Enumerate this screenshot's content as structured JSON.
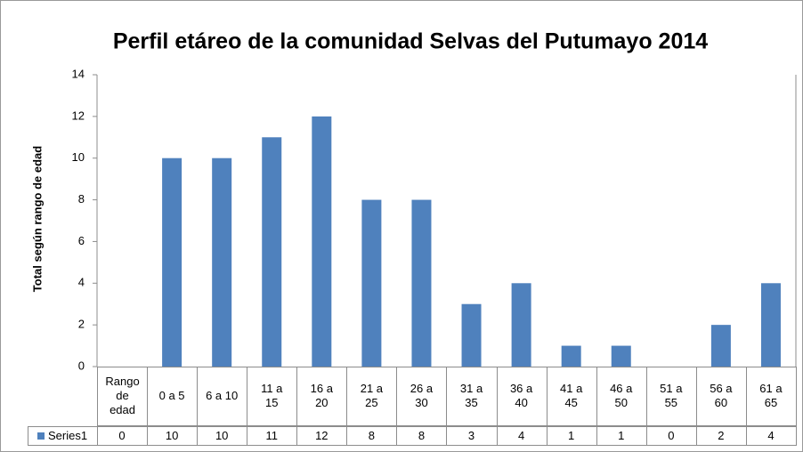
{
  "chart_data": {
    "type": "bar",
    "title": "Perfil etáreo de la comunidad Selvas del Putumayo 2014",
    "y_label": "Total según rango de edad",
    "categories": [
      "Rango de edad",
      "0 a 5",
      "6 a 10",
      "11 a 15",
      "16 a 20",
      "21 a 25",
      "26 a 30",
      "31 a 35",
      "36 a 40",
      "41 a 45",
      "46 a 50",
      "51 a 55",
      "56 a 60",
      "61 a 65"
    ],
    "series": [
      {
        "name": "Series1",
        "color": "#4f81bd",
        "values": [
          0,
          10,
          10,
          11,
          12,
          8,
          8,
          3,
          4,
          1,
          1,
          0,
          2,
          4
        ]
      }
    ],
    "ylim": [
      0,
      14
    ],
    "yticks": [
      0,
      2,
      4,
      6,
      8,
      10,
      12,
      14
    ],
    "grid": false,
    "data_table": true
  }
}
